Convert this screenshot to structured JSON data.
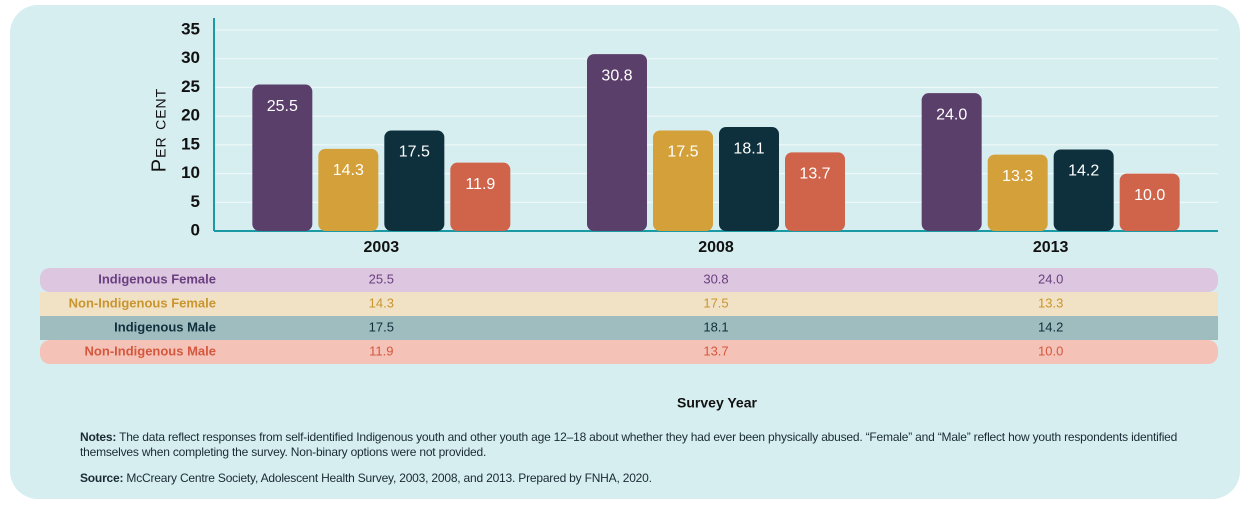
{
  "chart_data": {
    "type": "bar",
    "y_label": "Per cent",
    "x_label": "Survey Year",
    "categories": [
      "2003",
      "2008",
      "2013"
    ],
    "series": [
      {
        "name": "Indigenous Female",
        "color": "#5b3f6b",
        "values": [
          25.5,
          30.8,
          24.0
        ],
        "value_labels": [
          "25.5",
          "30.8",
          "24.0"
        ]
      },
      {
        "name": "Non-Indigenous Female",
        "color": "#d4a03a",
        "values": [
          14.3,
          17.5,
          13.3
        ],
        "value_labels": [
          "14.3",
          "17.5",
          "13.3"
        ]
      },
      {
        "name": "Indigenous Male",
        "color": "#0e2f3c",
        "values": [
          17.5,
          18.1,
          14.2
        ],
        "value_labels": [
          "17.5",
          "18.1",
          "14.2"
        ]
      },
      {
        "name": "Non-Indigenous Male",
        "color": "#cf644b",
        "values": [
          11.9,
          13.7,
          10.0
        ],
        "value_labels": [
          "11.9",
          "13.7",
          "10.0"
        ]
      }
    ],
    "ylim": [
      0,
      35
    ],
    "yticks": [
      0,
      5,
      10,
      15,
      20,
      25,
      30,
      35
    ],
    "grid": true
  },
  "notes_label": "Notes:",
  "notes": "The data reflect responses from self-identified Indigenous youth and other youth age 12–18 about whether they had ever been physically abused. “Female” and “Male” reflect how youth respondents identified themselves when completing the survey. Non-binary options were not provided.",
  "source_label": "Source:",
  "source": "McCreary Centre Society, Adolescent Health Survey, 2003, 2008, and 2013. Prepared by FNHA, 2020."
}
